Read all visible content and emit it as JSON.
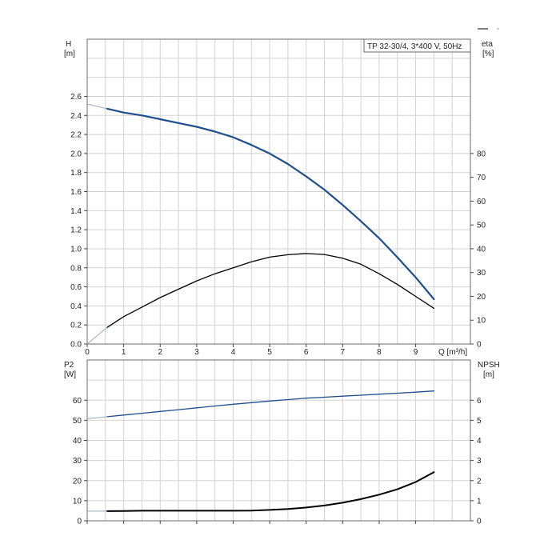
{
  "chart_data": [
    {
      "type": "line",
      "name": "performance",
      "title": "TP 32-30/4, 3*400 V, 50Hz",
      "xlabel": "Q [m³/h]",
      "ylabel_left": "H",
      "ylabel_left_unit": "[m]",
      "ylabel_right": "eta",
      "ylabel_right_unit": "[%]",
      "xlim": [
        0,
        10.5
      ],
      "ylim_left": [
        0,
        3.2
      ],
      "ylim_right": [
        0,
        128
      ],
      "x_ticks": [
        0,
        1,
        2,
        3,
        4,
        5,
        6,
        7,
        8,
        9
      ],
      "y_ticks_left": [
        "0.0",
        "0.2",
        "0.4",
        "0.6",
        "0.8",
        "1.0",
        "1.2",
        "1.4",
        "1.6",
        "1.8",
        "2.0",
        "2.2",
        "2.4",
        "2.6"
      ],
      "y_ticks_right": [
        "0",
        "10",
        "20",
        "30",
        "40",
        "50",
        "60",
        "70",
        "80"
      ],
      "grid": true,
      "series": [
        {
          "color": "#1f4e8c",
          "axis": "left",
          "x": [
            0.55,
            1,
            1.5,
            2,
            2.5,
            3,
            3.5,
            4,
            4.5,
            5,
            5.5,
            6,
            6.5,
            7,
            7.5,
            8,
            8.5,
            9,
            9.5
          ],
          "y": [
            2.47,
            2.43,
            2.4,
            2.36,
            2.32,
            2.28,
            2.23,
            2.17,
            2.09,
            2.0,
            1.89,
            1.76,
            1.62,
            1.46,
            1.29,
            1.11,
            0.91,
            0.7,
            0.47
          ],
          "extrapolated": {
            "x": [
              0,
              0.55
            ],
            "y": [
              2.52,
              2.47
            ]
          }
        },
        {
          "color": "#000000",
          "axis": "right",
          "x": [
            0.55,
            1,
            1.5,
            2,
            2.5,
            3,
            3.5,
            4,
            4.5,
            5,
            5.5,
            6,
            6.5,
            7,
            7.5,
            8,
            8.5,
            9,
            9.5
          ],
          "y": [
            7,
            11.5,
            15.5,
            19.5,
            23,
            26.5,
            29.5,
            32,
            34.5,
            36.5,
            37.5,
            38,
            37.6,
            36,
            33.5,
            29.5,
            25,
            20,
            15
          ],
          "extrapolated": {
            "x": [
              0,
              0.55
            ],
            "y": [
              0,
              7
            ]
          }
        }
      ]
    },
    {
      "type": "line",
      "name": "power-npsh",
      "xlabel": "",
      "ylabel_left": "P2",
      "ylabel_left_unit": "[W]",
      "ylabel_right": "NPSH",
      "ylabel_right_unit": "[m]",
      "xlim": [
        0,
        10.5
      ],
      "ylim_left": [
        0,
        80
      ],
      "ylim_right": [
        0,
        8
      ],
      "y_ticks_left": [
        "0",
        "10",
        "20",
        "30",
        "40",
        "50",
        "60"
      ],
      "y_ticks_right": [
        "0",
        "1",
        "2",
        "3",
        "4",
        "5",
        "6"
      ],
      "grid": true,
      "series": [
        {
          "color": "#1f4e8c",
          "axis": "left",
          "x": [
            0.55,
            1,
            1.5,
            2,
            2.5,
            3,
            3.5,
            4,
            4.5,
            5,
            5.5,
            6,
            6.5,
            7,
            7.5,
            8,
            8.5,
            9,
            9.5
          ],
          "y": [
            51.8,
            52.6,
            53.5,
            54.4,
            55.3,
            56.2,
            57.1,
            58,
            58.8,
            59.6,
            60.3,
            61,
            61.5,
            62,
            62.5,
            63,
            63.5,
            64,
            64.6
          ],
          "extrapolated": {
            "x": [
              0,
              0.55
            ],
            "y": [
              50.8,
              51.8
            ]
          }
        },
        {
          "color": "#000000",
          "axis": "right",
          "x": [
            0.55,
            1,
            1.5,
            2,
            2.5,
            3,
            3.5,
            4,
            4.5,
            5,
            5.5,
            6,
            6.5,
            7,
            7.5,
            8,
            8.5,
            9,
            9.5
          ],
          "y": [
            0.48,
            0.49,
            0.5,
            0.5,
            0.5,
            0.5,
            0.5,
            0.5,
            0.51,
            0.54,
            0.59,
            0.66,
            0.76,
            0.9,
            1.08,
            1.3,
            1.57,
            1.93,
            2.42
          ],
          "extrapolated": {
            "x": [
              0,
              0.55
            ],
            "y": [
              0.48,
              0.48
            ]
          }
        }
      ]
    }
  ]
}
